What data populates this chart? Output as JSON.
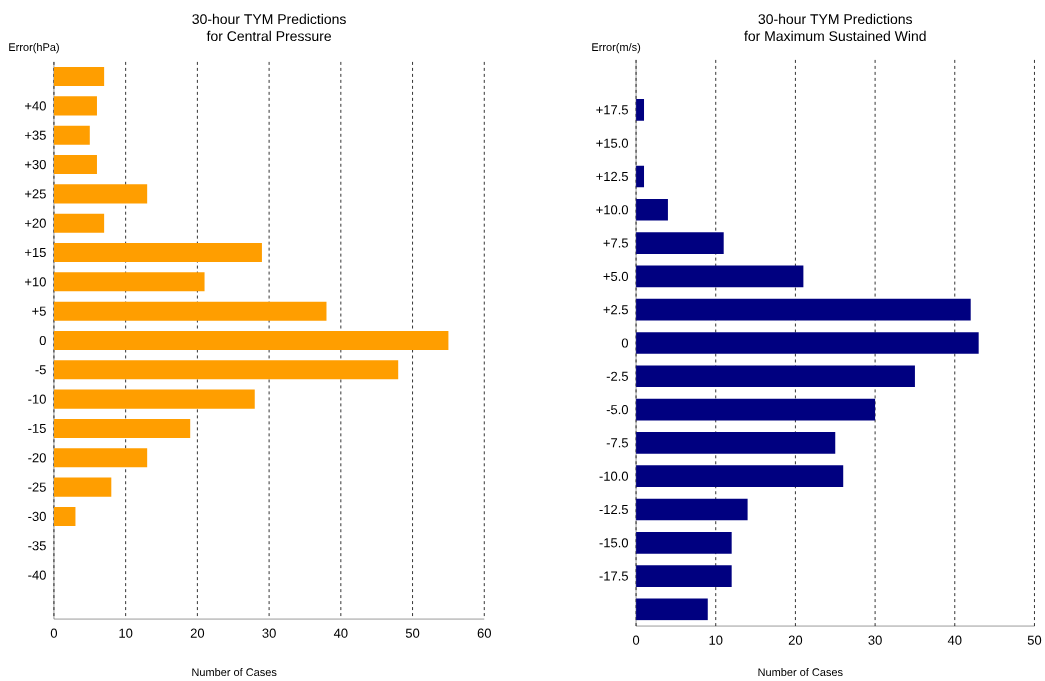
{
  "chart_data": [
    {
      "type": "bar",
      "orientation": "horizontal",
      "title": "30-hour TYM Predictions",
      "subtitle": "for Central Pressure",
      "xlabel": "Number of Cases",
      "ylabel": "Error(hPa)",
      "categories": [
        null,
        "+40",
        "+35",
        "+30",
        "+25",
        "+20",
        "+15",
        "+10",
        "+5",
        "0",
        "-5",
        "-10",
        "-15",
        "-20",
        "-25",
        "-30",
        "-35",
        "-40",
        null
      ],
      "values": [
        7,
        6,
        5,
        6,
        13,
        7,
        29,
        21,
        38,
        55,
        48,
        28,
        19,
        13,
        8,
        3,
        0,
        0,
        0
      ],
      "color": "#ff9e00",
      "xlim": [
        0,
        60
      ],
      "xticks": [
        0,
        10,
        20,
        30,
        40,
        50,
        60
      ],
      "grid": "x"
    },
    {
      "type": "bar",
      "orientation": "horizontal",
      "title": "30-hour TYM Predictions",
      "subtitle": "for Maximum Sustained Wind",
      "xlabel": "Number of Cases",
      "ylabel": "Error(m/s)",
      "categories": [
        null,
        "+17.5",
        "+15.0",
        "+12.5",
        "+10.0",
        "+7.5",
        "+5.0",
        "+2.5",
        "0",
        "-2.5",
        "-5.0",
        "-7.5",
        "-10.0",
        "-12.5",
        "-15.0",
        "-17.5",
        null
      ],
      "values": [
        0,
        1,
        0,
        1,
        4,
        11,
        21,
        42,
        43,
        35,
        30,
        25,
        26,
        14,
        12,
        12,
        9
      ],
      "color": "#000080",
      "xlim": [
        0,
        50
      ],
      "xticks": [
        0,
        10,
        20,
        30,
        40,
        50
      ],
      "grid": "x"
    }
  ]
}
